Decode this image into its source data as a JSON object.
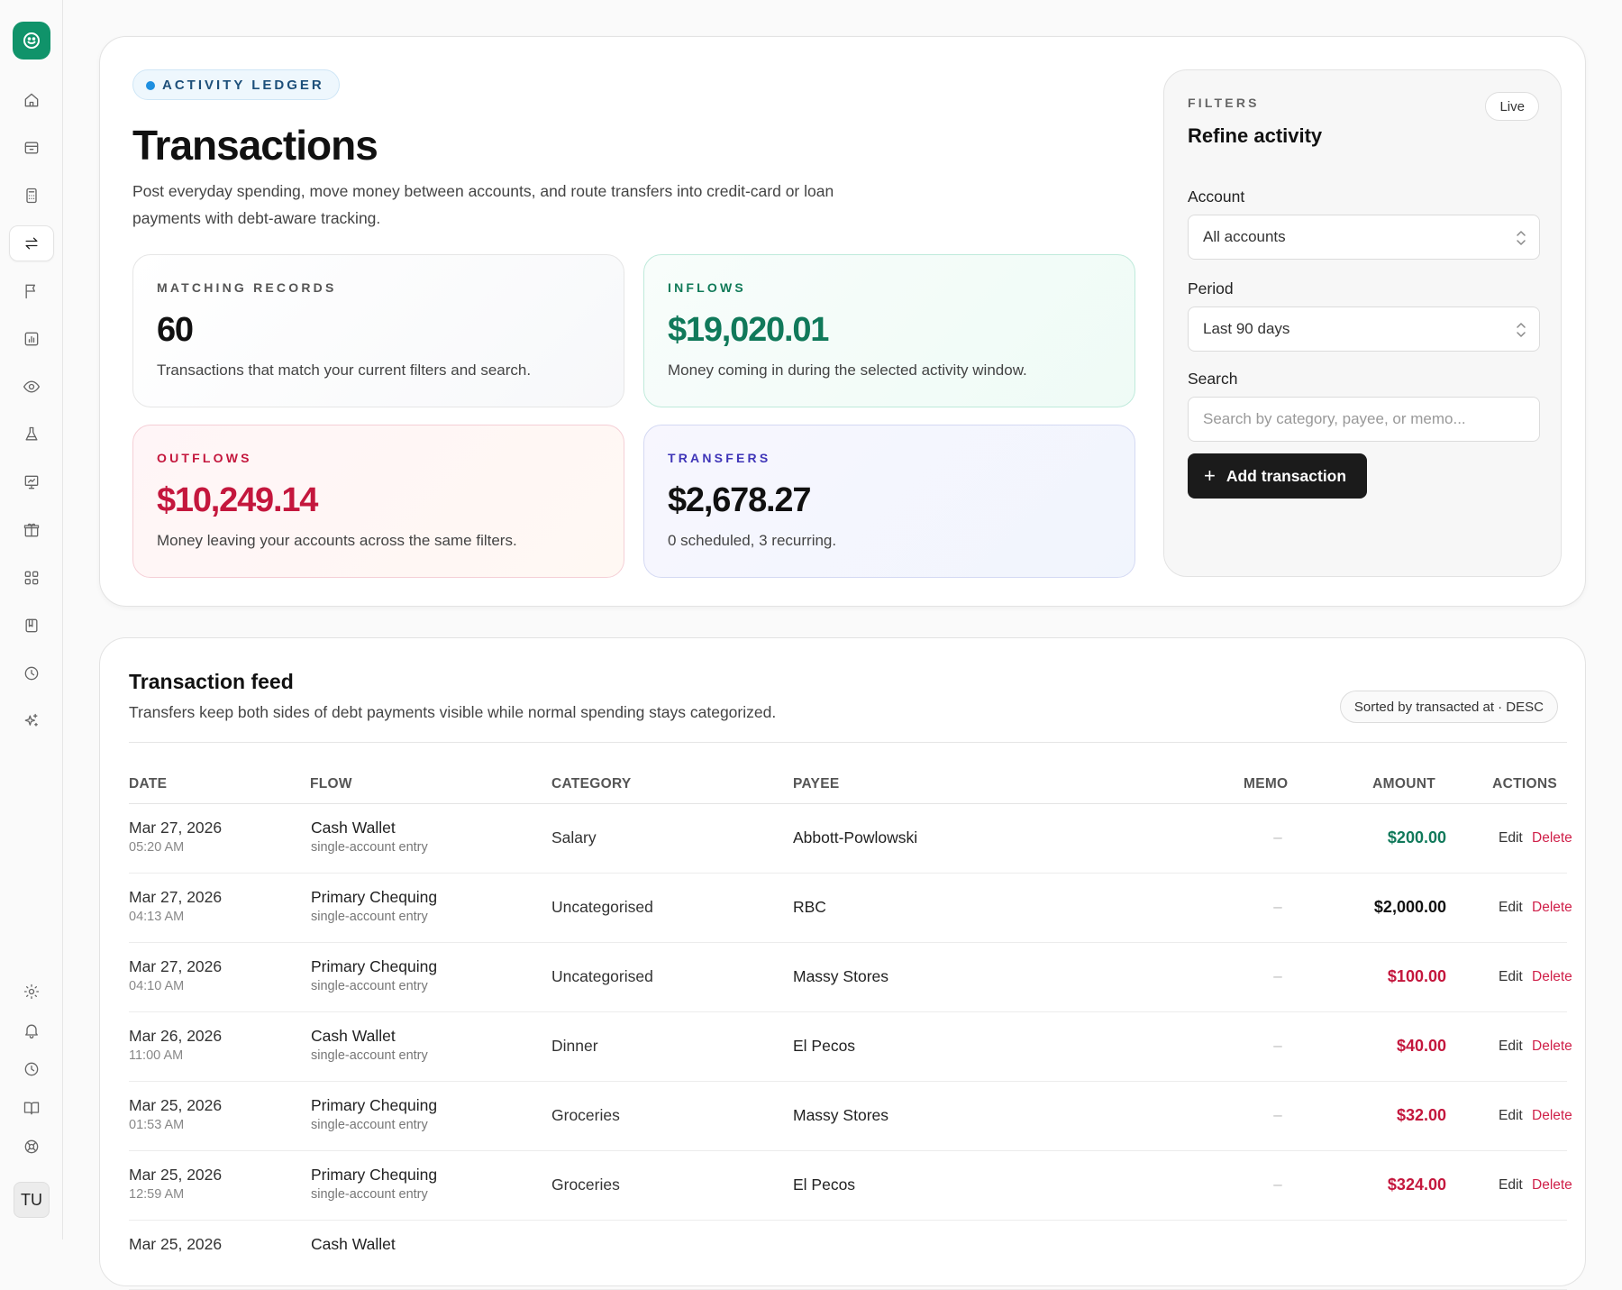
{
  "sidebar": {
    "user_initials": "TU"
  },
  "hero": {
    "eyebrow": "ACTIVITY LEDGER",
    "title": "Transactions",
    "subtitle": "Post everyday spending, move money between accounts, and route transfers into credit-card or loan payments with debt-aware tracking."
  },
  "stats": {
    "records": {
      "label": "MATCHING RECORDS",
      "value": "60",
      "desc": "Transactions that match your current filters and search."
    },
    "inflows": {
      "label": "INFLOWS",
      "value": "$19,020.01",
      "desc": "Money coming in during the selected activity window."
    },
    "outflows": {
      "label": "OUTFLOWS",
      "value": "$10,249.14",
      "desc": "Money leaving your accounts across the same filters."
    },
    "transfers": {
      "label": "TRANSFERS",
      "value": "$2,678.27",
      "desc": "0 scheduled, 3 recurring."
    }
  },
  "filters": {
    "eyebrow": "FILTERS",
    "title": "Refine activity",
    "live": "Live",
    "account_label": "Account",
    "account_value": "All accounts",
    "period_label": "Period",
    "period_value": "Last 90 days",
    "search_label": "Search",
    "search_placeholder": "Search by category, payee, or memo...",
    "add_button": "Add transaction"
  },
  "feed": {
    "title": "Transaction feed",
    "subtitle": "Transfers keep both sides of debt payments visible while normal spending stays categorized.",
    "sort": "Sorted by transacted at · DESC",
    "columns": {
      "date": "DATE",
      "flow": "FLOW",
      "category": "CATEGORY",
      "payee": "PAYEE",
      "memo": "MEMO",
      "amount": "AMOUNT",
      "actions": "ACTIONS"
    },
    "edit_label": "Edit",
    "delete_label": "Delete",
    "rows": [
      {
        "date": "Mar 27, 2026",
        "time": "05:20 AM",
        "flow": "Cash Wallet",
        "flow_sub": "single-account entry",
        "category": "Salary",
        "payee": "Abbott-Powlowski",
        "memo": "–",
        "amount": "$200.00",
        "kind": "in"
      },
      {
        "date": "Mar 27, 2026",
        "time": "04:13 AM",
        "flow": "Primary Chequing",
        "flow_sub": "single-account entry",
        "category": "Uncategorised",
        "payee": "RBC",
        "memo": "–",
        "amount": "$2,000.00",
        "kind": "neutral"
      },
      {
        "date": "Mar 27, 2026",
        "time": "04:10 AM",
        "flow": "Primary Chequing",
        "flow_sub": "single-account entry",
        "category": "Uncategorised",
        "payee": "Massy Stores",
        "memo": "–",
        "amount": "$100.00",
        "kind": "out"
      },
      {
        "date": "Mar 26, 2026",
        "time": "11:00 AM",
        "flow": "Cash Wallet",
        "flow_sub": "single-account entry",
        "category": "Dinner",
        "payee": "El Pecos",
        "memo": "–",
        "amount": "$40.00",
        "kind": "out"
      },
      {
        "date": "Mar 25, 2026",
        "time": "01:53 AM",
        "flow": "Primary Chequing",
        "flow_sub": "single-account entry",
        "category": "Groceries",
        "payee": "Massy Stores",
        "memo": "–",
        "amount": "$32.00",
        "kind": "out"
      },
      {
        "date": "Mar 25, 2026",
        "time": "12:59 AM",
        "flow": "Primary Chequing",
        "flow_sub": "single-account entry",
        "category": "Groceries",
        "payee": "El Pecos",
        "memo": "–",
        "amount": "$324.00",
        "kind": "out"
      },
      {
        "date": "Mar 25, 2026",
        "time": "",
        "flow": "Cash Wallet",
        "flow_sub": "",
        "category": "",
        "payee": "",
        "memo": "",
        "amount": "",
        "kind": "out"
      }
    ]
  },
  "colors": {
    "brand": "#10936a",
    "inflow": "#10795a",
    "outflow": "#c4173d",
    "transfer": "#3f35b8"
  }
}
